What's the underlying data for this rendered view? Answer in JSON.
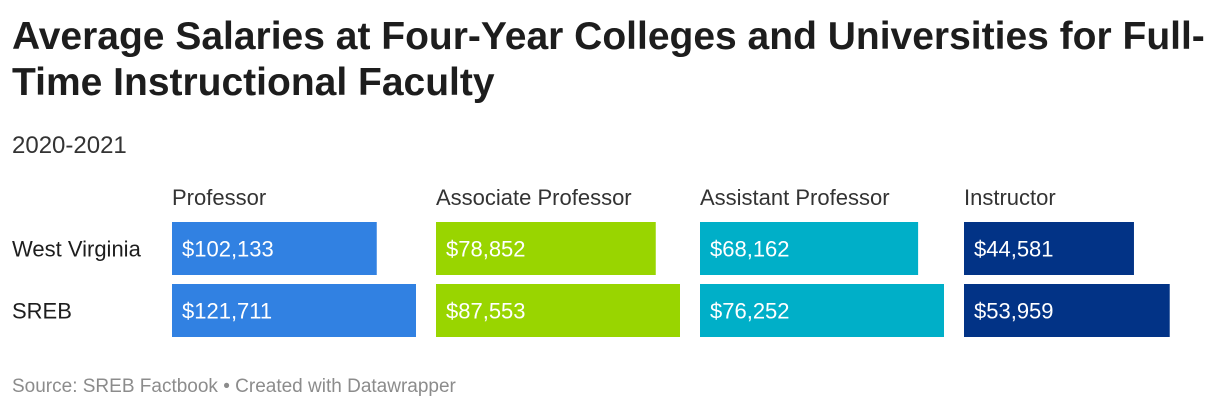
{
  "title": "Average Salaries at Four-Year Colleges and Universities for Full-Time Instructional Faculty",
  "subtitle": "2020-2021",
  "footer": {
    "source": "Source: SREB Factbook",
    "separator": " • ",
    "credit": "Created with Datawrapper"
  },
  "chart_data": {
    "type": "bar",
    "orientation": "horizontal",
    "layout": "small-multiples",
    "categories": [
      "West Virginia",
      "SREB"
    ],
    "series": [
      {
        "name": "Professor",
        "color": "#3181e2",
        "values": [
          102133,
          121711
        ],
        "labels": [
          "$102,133",
          "$121,711"
        ]
      },
      {
        "name": "Associate Professor",
        "color": "#99d500",
        "values": [
          78852,
          87553
        ],
        "labels": [
          "$78,852",
          "$87,553"
        ]
      },
      {
        "name": "Assistant Professor",
        "color": "#00afc8",
        "values": [
          68162,
          76252
        ],
        "labels": [
          "$68,162",
          "$76,252"
        ]
      },
      {
        "name": "Instructor",
        "color": "#023386",
        "values": [
          44581,
          53959
        ],
        "labels": [
          "$44,581",
          "$53,959"
        ]
      }
    ],
    "panel_max": [
      121711,
      87553,
      76252,
      64000
    ],
    "grid": false,
    "legend": "none"
  }
}
